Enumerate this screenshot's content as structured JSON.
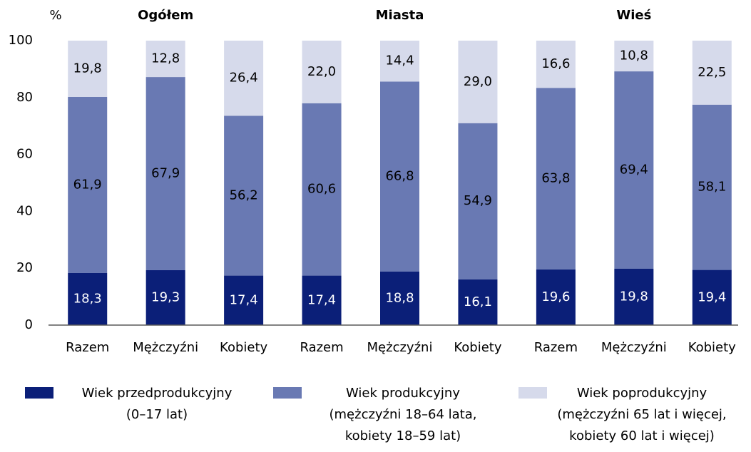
{
  "chart_data": {
    "type": "stacked_bar",
    "y_label": "%",
    "groups": [
      "Ogółem",
      "Miasta",
      "Wieś"
    ],
    "categories": [
      "Razem",
      "Mężczyźni",
      "Kobiety",
      "Razem",
      "Mężczyźni",
      "Kobiety",
      "Razem",
      "Mężczyźni",
      "Kobiety"
    ],
    "series": [
      {
        "name": [
          "Wiek przedprodukcyjny",
          "(0–17 lat)"
        ],
        "color": "#0b1f78",
        "label_color": "#ffffff",
        "values": [
          18.3,
          19.3,
          17.4,
          17.4,
          18.8,
          16.1,
          19.6,
          19.8,
          19.4
        ],
        "value_labels": [
          "18,3",
          "19,3",
          "17,4",
          "17,4",
          "18,8",
          "16,1",
          "19,6",
          "19,8",
          "19,4"
        ]
      },
      {
        "name": [
          "Wiek produkcyjny",
          "(mężczyźni 18–64 lata,",
          "kobiety 18–59 lat)"
        ],
        "color": "#6979b3",
        "label_color": "#000000",
        "values": [
          61.9,
          67.9,
          56.2,
          60.6,
          66.8,
          54.9,
          63.8,
          69.4,
          58.1
        ],
        "value_labels": [
          "61,9",
          "67,9",
          "56,2",
          "60,6",
          "66,8",
          "54,9",
          "63,8",
          "69,4",
          "58,1"
        ]
      },
      {
        "name": [
          "Wiek poprodukcyjny",
          "(mężczyźni 65 lat i więcej,",
          "kobiety 60 lat i więcej)"
        ],
        "color": "#d6daeb",
        "label_color": "#000000",
        "values": [
          19.8,
          12.8,
          26.4,
          22.0,
          14.4,
          29.0,
          16.6,
          10.8,
          22.5
        ],
        "value_labels": [
          "19,8",
          "12,8",
          "26,4",
          "22,0",
          "14,4",
          "29,0",
          "16,6",
          "10,8",
          "22,5"
        ]
      }
    ],
    "ylim": [
      0,
      100
    ],
    "yticks": [
      0,
      20,
      40,
      60,
      80,
      100
    ],
    "grid": false
  }
}
